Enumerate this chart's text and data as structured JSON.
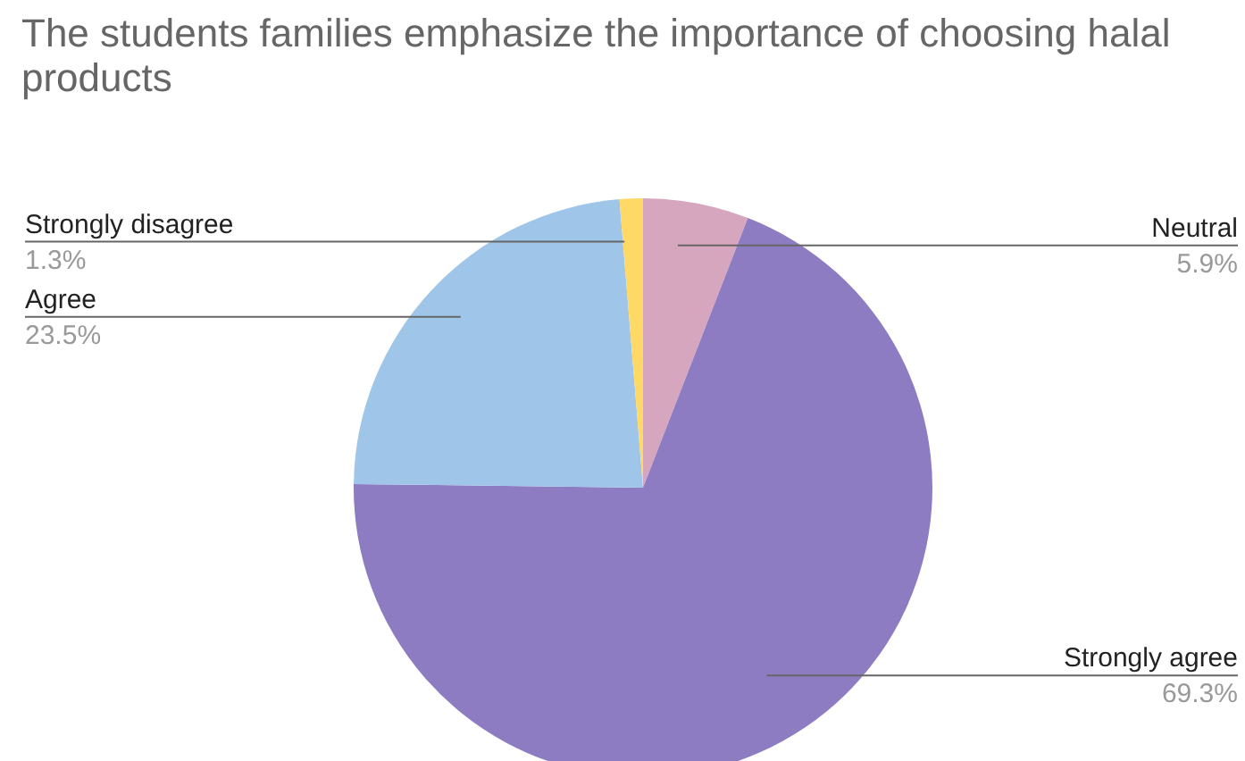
{
  "chart_data": {
    "type": "pie",
    "title": "The students families emphasize the importance of choosing halal products",
    "categories": [
      "Neutral",
      "Strongly agree",
      "Agree",
      "Strongly disagree"
    ],
    "values": [
      5.9,
      69.3,
      23.5,
      1.3
    ],
    "value_labels": [
      "5.9%",
      "69.3%",
      "23.5%",
      "1.3%"
    ],
    "colors": [
      "#d5a6bd",
      "#8e7cc3",
      "#9fc5e8",
      "#ffd966"
    ],
    "legend": false
  }
}
